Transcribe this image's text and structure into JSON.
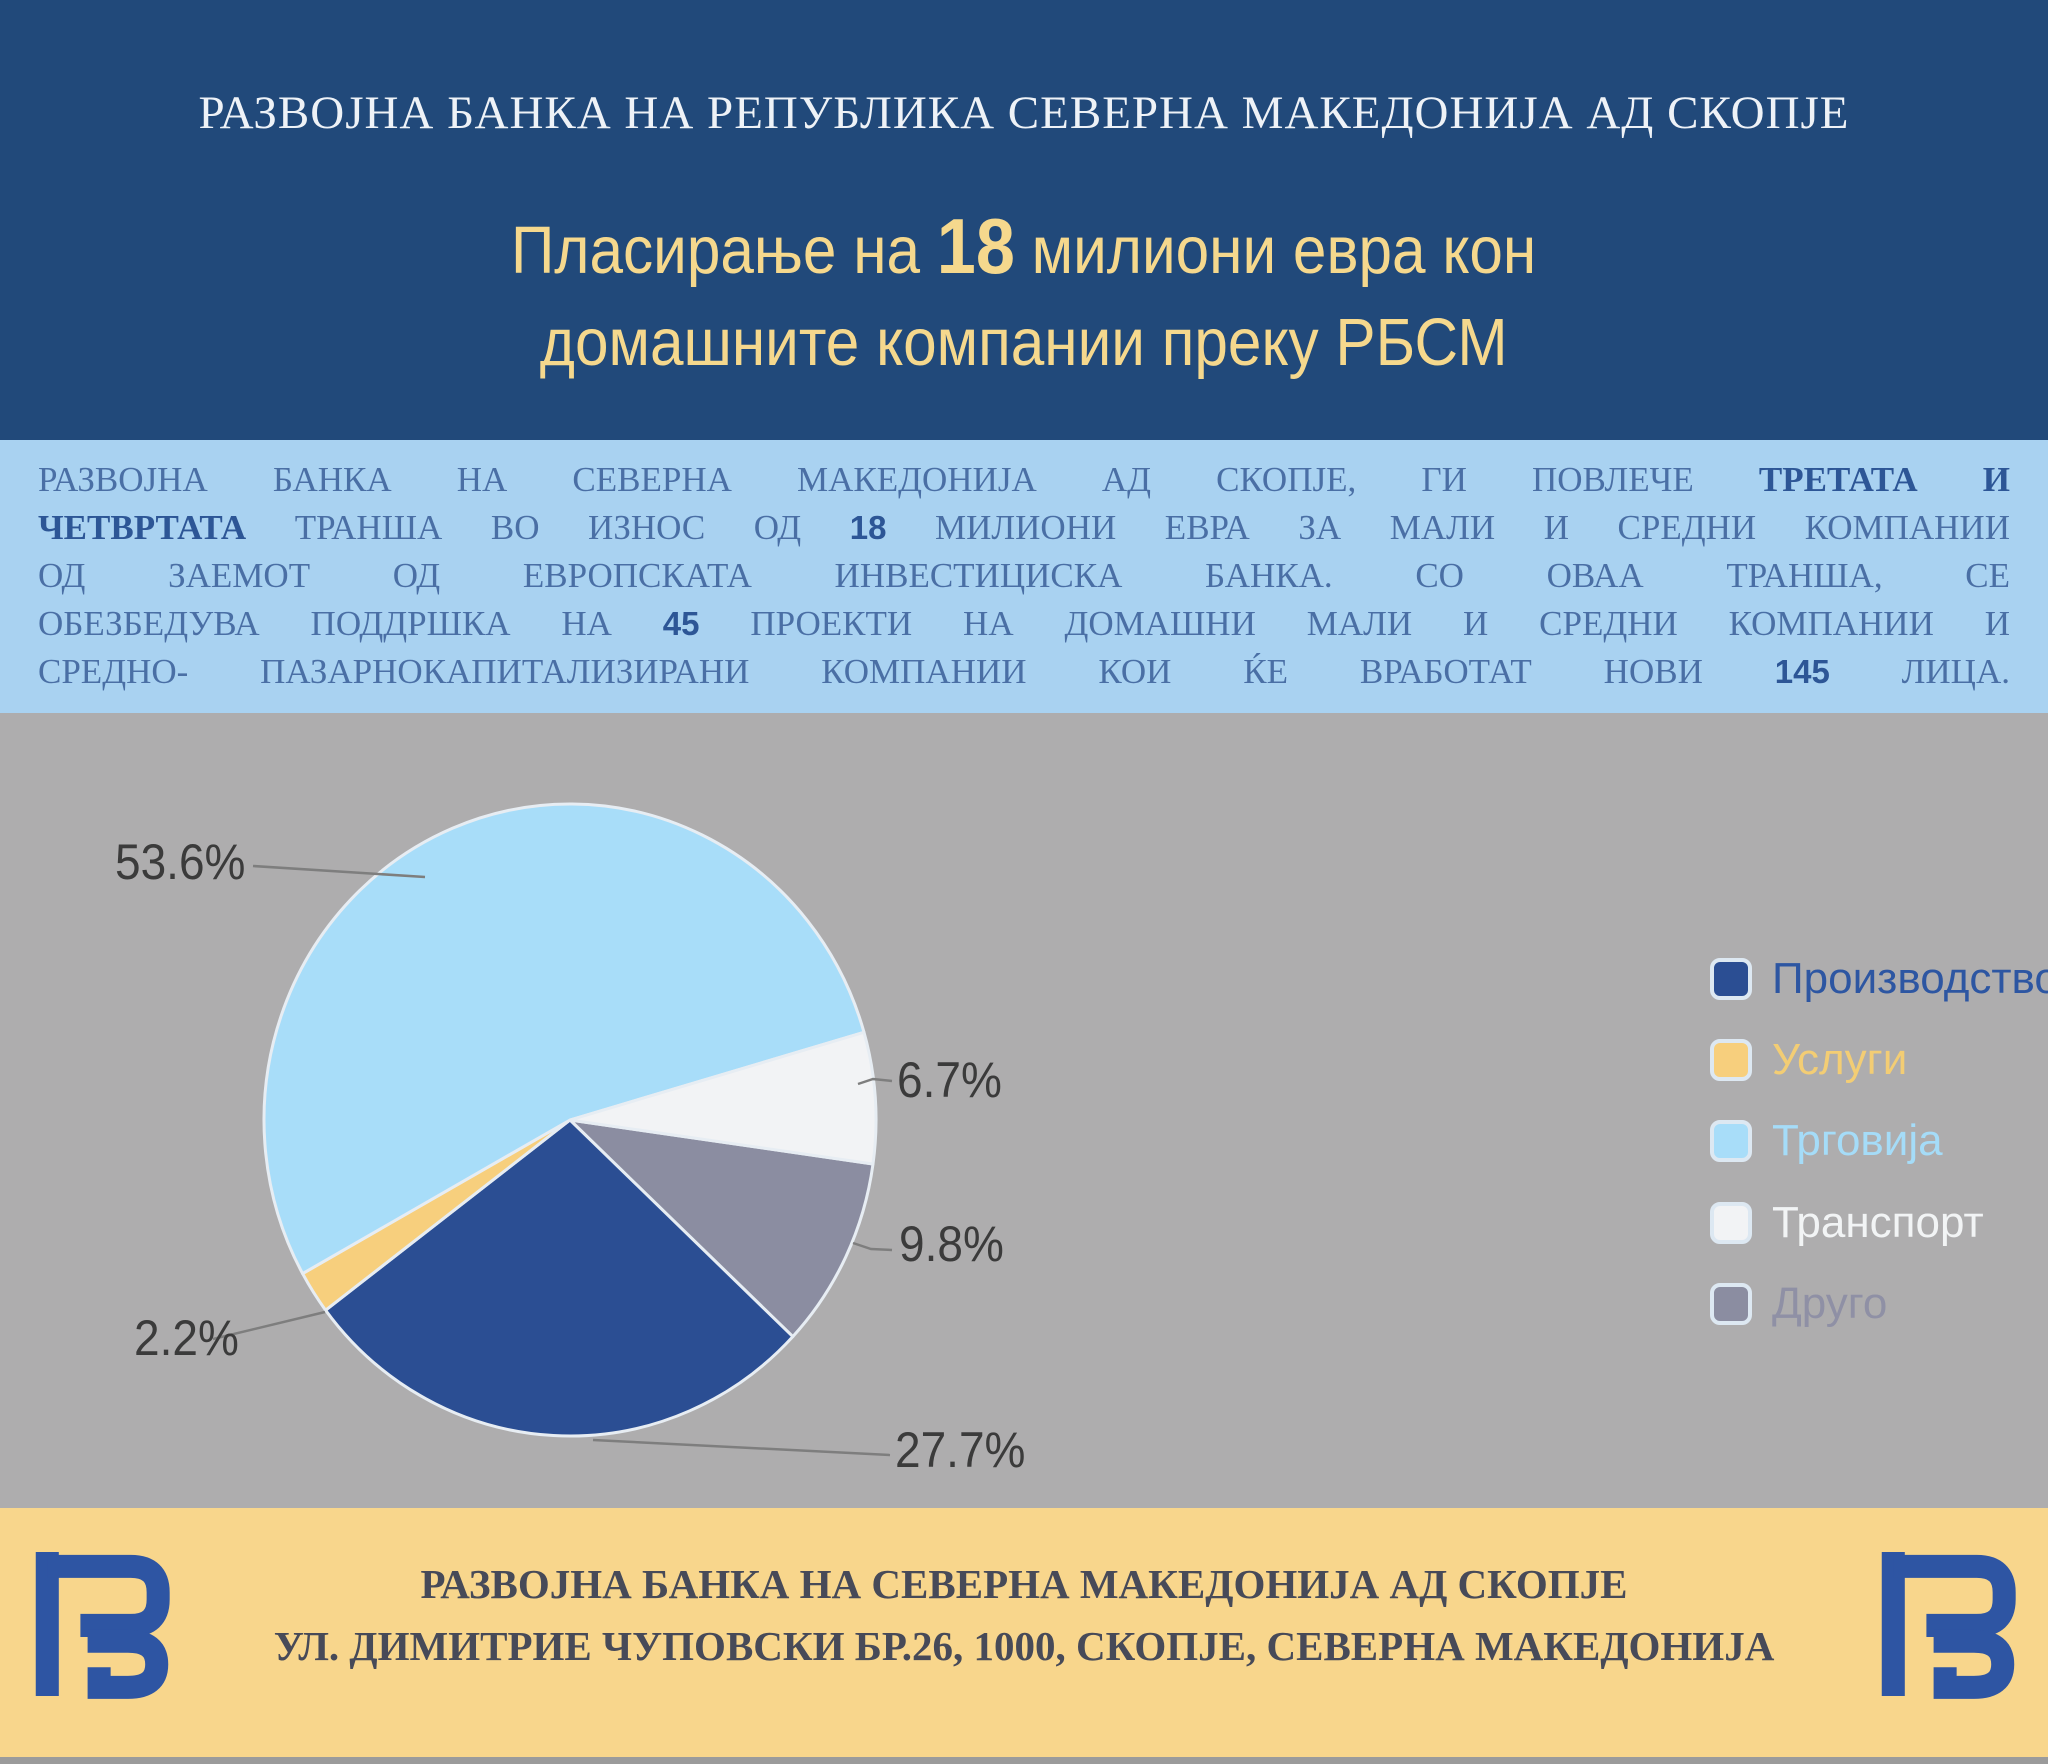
{
  "header": {
    "bank_name": "РАЗВОЈНА БАНКА НА РЕПУБЛИКА СЕВЕРНА МАКЕДОНИЈА АД СКОПЈЕ",
    "title_pre": "Пласирање на ",
    "title_amount": "18",
    "title_post": " милиони евра кон",
    "title_line2": "домашните компании преку РБСМ"
  },
  "intro": {
    "lines": [
      [
        {
          "t": "РАЗВОЈНА БАНКА НА СЕВЕРНА МАКЕДОНИЈА АД СКОПЈЕ, ГИ ПОВЛЕЧЕ ",
          "s": "r"
        },
        {
          "t": "ТРЕТАТА И",
          "s": "b"
        }
      ],
      [
        {
          "t": "ЧЕТВРТАТА",
          "s": "b"
        },
        {
          "t": " ТРАНША ВО ИЗНОС ОД ",
          "s": "r"
        },
        {
          "t": "18",
          "s": "n"
        },
        {
          "t": " МИЛИОНИ ЕВРА ЗА МАЛИ И СРЕДНИ КОМПАНИИ",
          "s": "r"
        }
      ],
      [
        {
          "t": "ОД ЗАЕМОТ ОД ЕВРОПСКАТА ИНВЕСТИЦИСКА БАНКА. СО ОВАА ТРАНША, СЕ",
          "s": "r"
        }
      ],
      [
        {
          "t": "ОБЕЗБЕДУВА ПОДДРШКА НА ",
          "s": "r"
        },
        {
          "t": "45",
          "s": "n"
        },
        {
          "t": " ПРОЕКТИ НА ДОМАШНИ МАЛИ И СРЕДНИ КОМПАНИИ И",
          "s": "r"
        }
      ],
      [
        {
          "t": "СРЕДНО- ПАЗАРНОКАПИТАЛИЗИРАНИ КОМПАНИИ КОИ ЌЕ ВРАБОТАТ НОВИ ",
          "s": "r"
        },
        {
          "t": "145",
          "s": "n"
        },
        {
          "t": " ЛИЦА.",
          "s": "r"
        }
      ]
    ]
  },
  "chart_data": {
    "type": "pie",
    "unit": "%",
    "title": "",
    "legend_position": "right",
    "slices": [
      {
        "label": "Производство",
        "value": 27.7,
        "pct_label": "27.7%",
        "color": "#2b4e93",
        "label_color": "#2d56a2"
      },
      {
        "label": "Услуги",
        "value": 2.2,
        "pct_label": "2.2%",
        "color": "#f7cf7d",
        "label_color": "#f3cd74"
      },
      {
        "label": "Трговија",
        "value": 53.6,
        "pct_label": "53.6%",
        "color": "#a8ddf9",
        "label_color": "#a5dcf8"
      },
      {
        "label": "Транспорт",
        "value": 6.7,
        "pct_label": "6.7%",
        "color": "#f2f3f5",
        "label_color": "#f2f4f5"
      },
      {
        "label": "Друго",
        "value": 9.8,
        "pct_label": "9.8%",
        "color": "#8b8da1",
        "label_color": "#8f90a5"
      }
    ],
    "draw_order": [
      4,
      0,
      1,
      2,
      3
    ],
    "start_angle_deg": 8
  },
  "footer": {
    "line1": "РАЗВОЈНА БАНКА НА СЕВЕРНА МАКЕДОНИЈА АД СКОПЈЕ",
    "line2": "УЛ. ДИМИТРИЕ ЧУПОВСКИ БР.26, 1000, СКОПЈЕ, СЕВЕРНА МАКЕДОНИЈА"
  },
  "colors": {
    "header_bg": "#21497a",
    "title_yellow": "#f5d88d",
    "intro_bg": "#a9d2f1",
    "intro_text": "#4a6fa5",
    "intro_bold": "#2d5696",
    "chart_bg": "#aeadae",
    "pct_label": "#3b3b3b",
    "footer_bg": "#f8d68c",
    "logo_blue": "#2e55a3"
  }
}
